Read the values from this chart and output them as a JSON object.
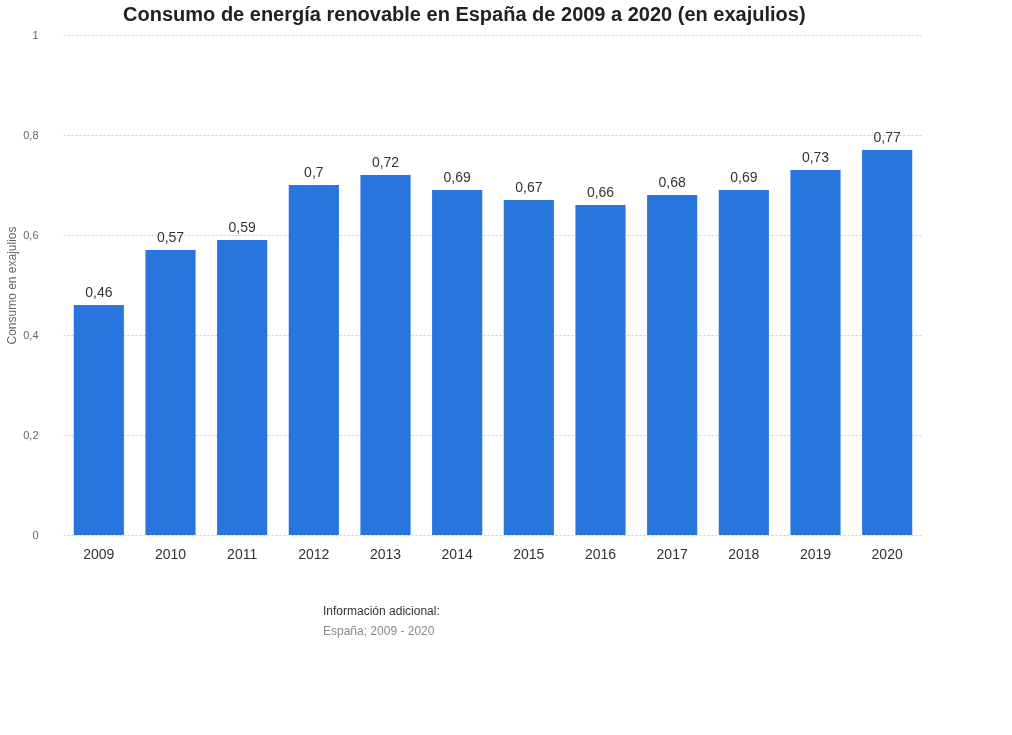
{
  "chart_data": {
    "type": "bar",
    "title": "Consumo de energía renovable en España de 2009 a 2020 (en exajulios)",
    "ylabel": "Consumo en exajulios",
    "categories": [
      "2009",
      "2010",
      "2011",
      "2012",
      "2013",
      "2014",
      "2015",
      "2016",
      "2017",
      "2018",
      "2019",
      "2020"
    ],
    "values": [
      0.46,
      0.57,
      0.59,
      0.7,
      0.72,
      0.69,
      0.67,
      0.66,
      0.68,
      0.69,
      0.73,
      0.77
    ],
    "value_labels": [
      "0,46",
      "0,57",
      "0,59",
      "0,7",
      "0,72",
      "0,69",
      "0,67",
      "0,66",
      "0,68",
      "0,69",
      "0,73",
      "0,77"
    ],
    "color": "#2876dd",
    "ylim": [
      0,
      1
    ],
    "yticks": [
      0,
      {
        "value": 0.2,
        "label": "0,2"
      },
      {
        "value": 0.4,
        "label": "0,4"
      },
      {
        "value": 0.6,
        "label": "0,6"
      },
      {
        "value": 0.8,
        "label": "0,8"
      },
      1
    ],
    "grid": "y",
    "annotations": [
      "Información adicional:",
      "España; 2009 - 2020"
    ]
  }
}
